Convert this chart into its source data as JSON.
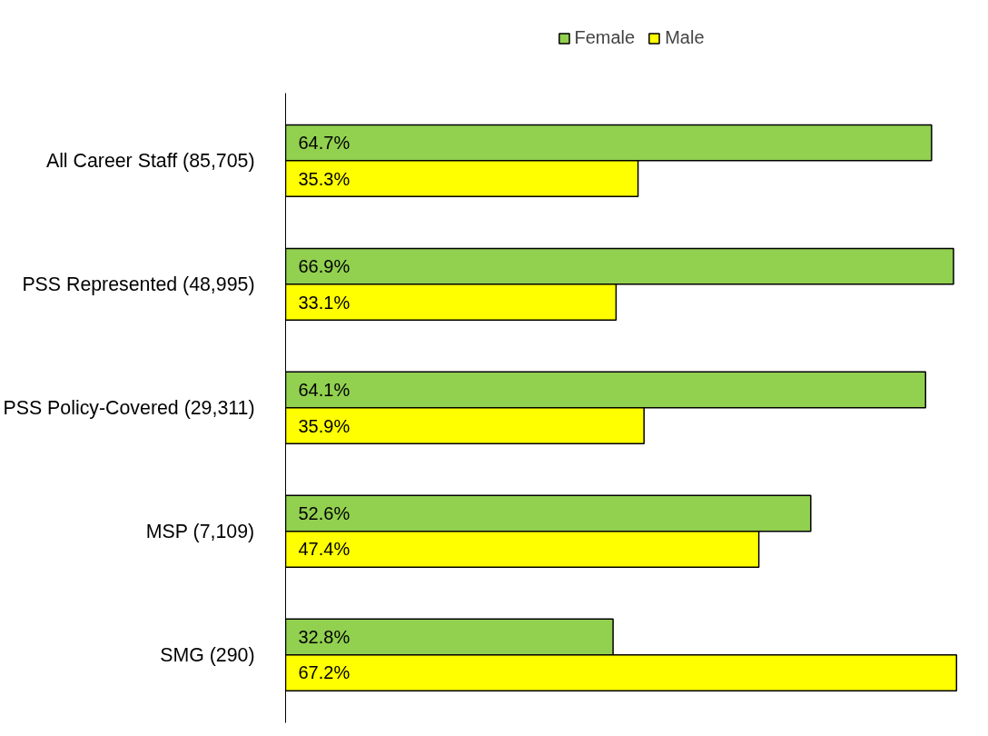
{
  "chart_data": {
    "type": "bar",
    "orientation": "horizontal",
    "categories": [
      "All Career Staff (85,705)",
      "PSS Represented (48,995)",
      "PSS Policy-Covered (29,311)",
      "MSP (7,109)",
      "SMG (290)"
    ],
    "series": [
      {
        "name": "Female",
        "color": "#92d050",
        "values": [
          64.7,
          66.9,
          64.1,
          52.6,
          32.8
        ],
        "value_labels": [
          "64.7%",
          "66.9%",
          "64.1%",
          "52.6%",
          "32.8%"
        ]
      },
      {
        "name": "Male",
        "color": "#ffff00",
        "values": [
          35.3,
          33.1,
          35.9,
          47.4,
          67.2
        ],
        "value_labels": [
          "35.3%",
          "33.1%",
          "35.9%",
          "47.4%",
          "67.2%"
        ]
      }
    ],
    "legend": "top",
    "grid": false
  }
}
